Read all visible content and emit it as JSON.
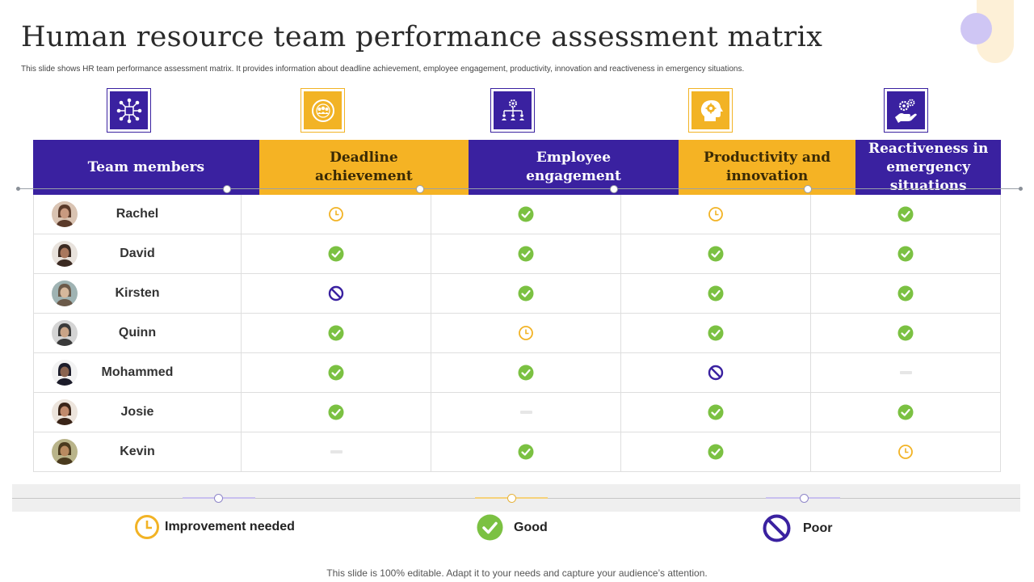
{
  "title": "Human resource team performance assessment matrix",
  "subtitle": "This slide shows HR team performance assessment matrix. It provides information about deadline achievement, employee engagement, productivity, innovation and reactiveness in emergency situations.",
  "colors": {
    "purple": "#3a21a0",
    "yellow": "#f2b325",
    "good": "#7bc142",
    "improvement": "#f2b325",
    "poor": "#3a21a0"
  },
  "columns": [
    {
      "label": "Team members",
      "icon": "network-icon",
      "color": "purple"
    },
    {
      "label": "Deadline achievement",
      "icon": "team-target-icon",
      "color": "yellow"
    },
    {
      "label": "Employee engagement",
      "icon": "org-chart-gear-icon",
      "color": "purple"
    },
    {
      "label": "Productivity and innovation",
      "icon": "head-gear-icon",
      "color": "yellow"
    },
    {
      "label": "Reactiveness in emergency situations",
      "icon": "hand-gears-icon",
      "color": "purple"
    }
  ],
  "rows": [
    {
      "name": "Rachel",
      "values": [
        "improvement",
        "good",
        "improvement",
        "good"
      ]
    },
    {
      "name": "David",
      "values": [
        "good",
        "good",
        "good",
        "good"
      ]
    },
    {
      "name": "Kirsten",
      "values": [
        "poor",
        "good",
        "good",
        "good"
      ]
    },
    {
      "name": "Quinn",
      "values": [
        "good",
        "improvement",
        "good",
        "good"
      ]
    },
    {
      "name": "Mohammed",
      "values": [
        "good",
        "good",
        "poor",
        "none"
      ]
    },
    {
      "name": "Josie",
      "values": [
        "good",
        "none",
        "good",
        "good"
      ]
    },
    {
      "name": "Kevin",
      "values": [
        "none",
        "good",
        "good",
        "improvement"
      ]
    }
  ],
  "legend": {
    "improvement": "Improvement needed",
    "good": "Good",
    "poor": "Poor"
  },
  "footer": "This slide is 100% editable. Adapt it to your needs and capture your audience’s attention."
}
